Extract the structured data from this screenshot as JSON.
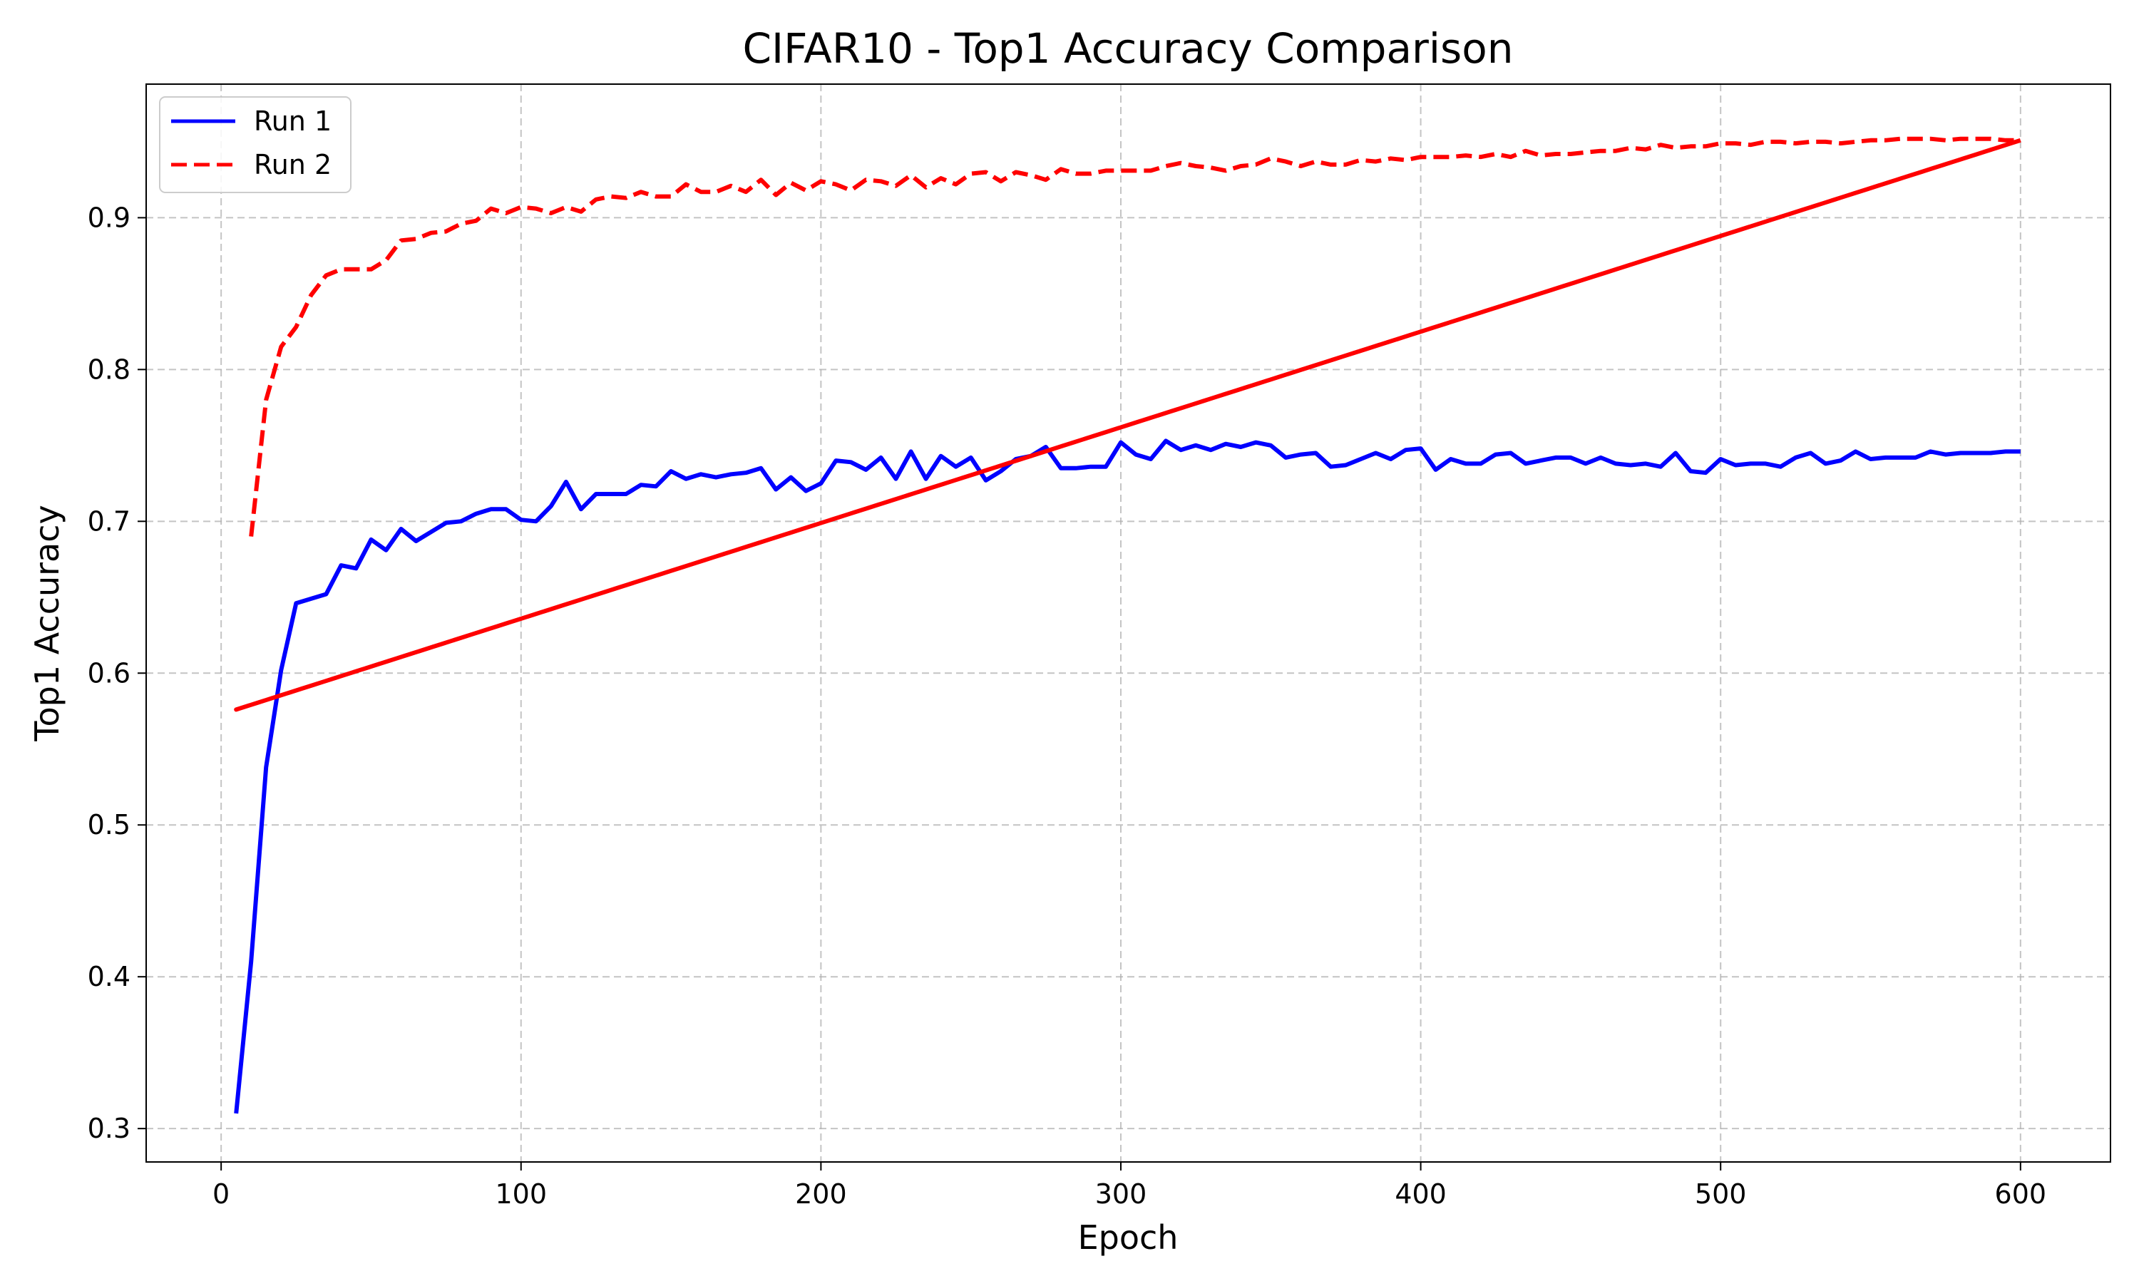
{
  "chart_data": {
    "type": "line",
    "title": "CIFAR10 - Top1 Accuracy Comparison",
    "xlabel": "Epoch",
    "ylabel": "Top1 Accuracy",
    "xlim": [
      -25,
      630
    ],
    "ylim": [
      0.278,
      0.988
    ],
    "xticks": [
      0,
      100,
      200,
      300,
      400,
      500,
      600
    ],
    "yticks": [
      0.3,
      0.4,
      0.5,
      0.6,
      0.7,
      0.8,
      0.9
    ],
    "xtick_labels": [
      "0",
      "100",
      "200",
      "300",
      "400",
      "500",
      "600"
    ],
    "ytick_labels": [
      "0.3",
      "0.4",
      "0.5",
      "0.6",
      "0.7",
      "0.8",
      "0.9"
    ],
    "grid": true,
    "legend": "top-left",
    "series": [
      {
        "name": "Run 1",
        "color": "#0000ff",
        "style": "solid",
        "x": [
          5,
          10,
          15,
          20,
          25,
          30,
          35,
          40,
          45,
          50,
          55,
          60,
          65,
          70,
          75,
          80,
          85,
          90,
          95,
          100,
          105,
          110,
          115,
          120,
          125,
          130,
          135,
          140,
          145,
          150,
          155,
          160,
          165,
          170,
          175,
          180,
          185,
          190,
          195,
          200,
          205,
          210,
          215,
          220,
          225,
          230,
          235,
          240,
          245,
          250,
          255,
          260,
          265,
          270,
          275,
          280,
          285,
          290,
          295,
          300,
          305,
          310,
          315,
          320,
          325,
          330,
          335,
          340,
          345,
          350,
          355,
          360,
          365,
          370,
          375,
          380,
          385,
          390,
          395,
          400,
          405,
          410,
          415,
          420,
          425,
          430,
          435,
          440,
          445,
          450,
          455,
          460,
          465,
          470,
          475,
          480,
          485,
          490,
          495,
          500,
          505,
          510,
          515,
          520,
          525,
          530,
          535,
          540,
          545,
          550,
          555,
          560,
          565,
          570,
          575,
          580,
          585,
          590,
          595,
          600
        ],
        "y": [
          0.31,
          0.41,
          0.538,
          0.602,
          0.646,
          0.649,
          0.652,
          0.671,
          0.669,
          0.688,
          0.681,
          0.695,
          0.687,
          0.693,
          0.699,
          0.7,
          0.705,
          0.708,
          0.708,
          0.701,
          0.7,
          0.71,
          0.726,
          0.708,
          0.718,
          0.718,
          0.718,
          0.724,
          0.723,
          0.733,
          0.728,
          0.731,
          0.729,
          0.731,
          0.732,
          0.735,
          0.721,
          0.729,
          0.72,
          0.725,
          0.74,
          0.739,
          0.734,
          0.742,
          0.728,
          0.746,
          0.728,
          0.743,
          0.736,
          0.742,
          0.727,
          0.733,
          0.741,
          0.743,
          0.749,
          0.735,
          0.735,
          0.736,
          0.736,
          0.752,
          0.744,
          0.741,
          0.753,
          0.747,
          0.75,
          0.747,
          0.751,
          0.749,
          0.752,
          0.75,
          0.742,
          0.744,
          0.745,
          0.736,
          0.737,
          0.741,
          0.745,
          0.741,
          0.747,
          0.748,
          0.734,
          0.741,
          0.738,
          0.738,
          0.744,
          0.745,
          0.738,
          0.74,
          0.742,
          0.742,
          0.738,
          0.742,
          0.738,
          0.737,
          0.738,
          0.736,
          0.745,
          0.733,
          0.732,
          0.741,
          0.737,
          0.738,
          0.738,
          0.736,
          0.742,
          0.745,
          0.738,
          0.74,
          0.746,
          0.741,
          0.742,
          0.742,
          0.742,
          0.746,
          0.744,
          0.745,
          0.745,
          0.745,
          0.746,
          0.746
        ]
      },
      {
        "name": "Run 2",
        "color": "#ff0000",
        "style": "dashed",
        "x": [
          10,
          15,
          20,
          25,
          30,
          35,
          40,
          45,
          50,
          55,
          60,
          65,
          70,
          75,
          80,
          85,
          90,
          95,
          100,
          105,
          110,
          115,
          120,
          125,
          130,
          135,
          140,
          145,
          150,
          155,
          160,
          165,
          170,
          175,
          180,
          185,
          190,
          195,
          200,
          205,
          210,
          215,
          220,
          225,
          230,
          235,
          240,
          245,
          250,
          255,
          260,
          265,
          270,
          275,
          280,
          285,
          290,
          295,
          300,
          305,
          310,
          315,
          320,
          325,
          330,
          335,
          340,
          345,
          350,
          355,
          360,
          365,
          370,
          375,
          380,
          385,
          390,
          395,
          400,
          405,
          410,
          415,
          420,
          425,
          430,
          435,
          440,
          445,
          450,
          455,
          460,
          465,
          470,
          475,
          480,
          485,
          490,
          495,
          500,
          505,
          510,
          515,
          520,
          525,
          530,
          535,
          540,
          545,
          550,
          555,
          560,
          565,
          570,
          575,
          580,
          585,
          590,
          595,
          600,
          5,
          600
        ],
        "y": [
          0.69,
          0.78,
          0.815,
          0.828,
          0.849,
          0.862,
          0.866,
          0.866,
          0.866,
          0.872,
          0.885,
          0.886,
          0.89,
          0.891,
          0.896,
          0.898,
          0.906,
          0.903,
          0.907,
          0.906,
          0.903,
          0.907,
          0.904,
          0.912,
          0.914,
          0.913,
          0.917,
          0.914,
          0.914,
          0.922,
          0.917,
          0.917,
          0.921,
          0.917,
          0.925,
          0.915,
          0.923,
          0.918,
          0.924,
          0.922,
          0.918,
          0.925,
          0.924,
          0.921,
          0.928,
          0.92,
          0.926,
          0.922,
          0.929,
          0.93,
          0.924,
          0.93,
          0.928,
          0.925,
          0.932,
          0.929,
          0.929,
          0.931,
          0.931,
          0.931,
          0.931,
          0.934,
          0.936,
          0.934,
          0.933,
          0.931,
          0.934,
          0.935,
          0.939,
          0.937,
          0.934,
          0.937,
          0.935,
          0.935,
          0.938,
          0.937,
          0.939,
          0.938,
          0.94,
          0.94,
          0.94,
          0.941,
          0.94,
          0.942,
          0.94,
          0.944,
          0.941,
          0.942,
          0.942,
          0.943,
          0.944,
          0.944,
          0.946,
          0.945,
          0.948,
          0.946,
          0.947,
          0.947,
          0.949,
          0.949,
          0.948,
          0.95,
          0.95,
          0.949,
          0.95,
          0.95,
          0.949,
          0.95,
          0.951,
          0.951,
          0.952,
          0.952,
          0.952,
          0.951,
          0.952,
          0.952,
          0.952,
          0.951,
          0.951,
          0.576,
          0.951
        ]
      }
    ]
  }
}
